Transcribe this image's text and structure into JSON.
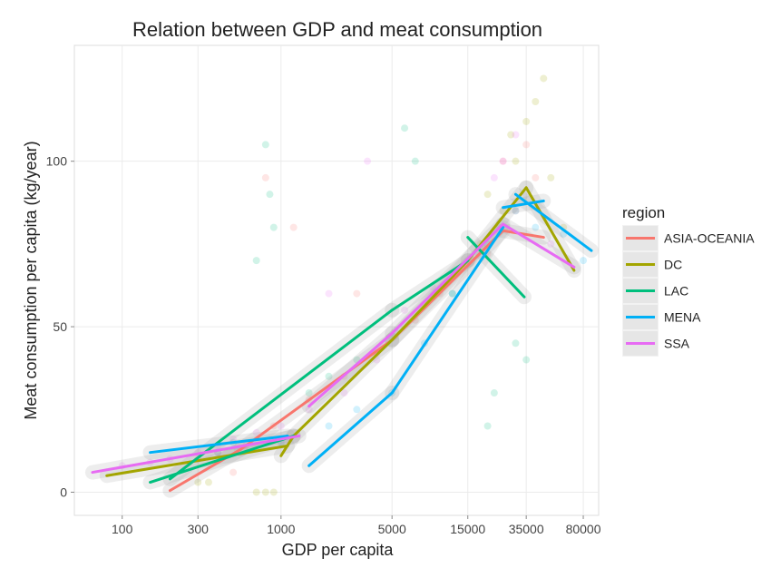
{
  "chart_data": {
    "type": "scatter",
    "title": "Relation between GDP and meat consumption",
    "xlabel": "GDP per capita",
    "ylabel": "Meat consumption per capita (kg/year)",
    "x_scale": "log",
    "xlim": [
      50,
      100000
    ],
    "ylim": [
      -7,
      135
    ],
    "x_ticks": [
      100,
      300,
      1000,
      5000,
      15000,
      35000,
      80000
    ],
    "x_tick_labels": [
      "100",
      "300",
      "1000",
      "5000",
      "15000",
      "35000",
      "80000"
    ],
    "y_ticks": [
      0,
      50,
      100
    ],
    "y_tick_labels": [
      "0",
      "50",
      "100"
    ],
    "grid": true,
    "legend": {
      "title": "region",
      "placement": "right"
    },
    "series": [
      {
        "name": "ASIA-OCEANIA",
        "color": "#F8766D",
        "trend_segments": [
          [
            [
              200,
              0.5
            ],
            [
              560,
              13
            ]
          ],
          [
            [
              560,
              13
            ],
            [
              5000,
              46
            ]
          ],
          [
            [
              5000,
              46
            ],
            [
              25000,
              79
            ]
          ],
          [
            [
              25000,
              79
            ],
            [
              45000,
              77
            ]
          ]
        ],
        "scatter": [
          [
            300,
            10
          ],
          [
            400,
            12
          ],
          [
            600,
            14
          ],
          [
            900,
            20
          ],
          [
            1500,
            28
          ],
          [
            2500,
            35
          ],
          [
            4000,
            42
          ],
          [
            7000,
            52
          ],
          [
            10000,
            60
          ],
          [
            20000,
            72
          ],
          [
            30000,
            85
          ],
          [
            40000,
            95
          ],
          [
            35000,
            105
          ],
          [
            25000,
            100
          ],
          [
            1200,
            80
          ],
          [
            800,
            95
          ],
          [
            3000,
            60
          ],
          [
            500,
            6
          ]
        ]
      },
      {
        "name": "DC",
        "color": "#A3A500",
        "trend_segments": [
          [
            [
              80,
              5
            ],
            [
              1100,
              14
            ]
          ],
          [
            [
              1000,
              11
            ],
            [
              1200,
              17
            ]
          ],
          [
            [
              1200,
              17
            ],
            [
              5000,
              46
            ]
          ],
          [
            [
              5000,
              46
            ],
            [
              15000,
              70
            ]
          ],
          [
            [
              15000,
              70
            ],
            [
              35000,
              92
            ]
          ],
          [
            [
              35000,
              92
            ],
            [
              70000,
              67
            ]
          ]
        ],
        "scatter": [
          [
            700,
            0
          ],
          [
            800,
            0
          ],
          [
            900,
            0
          ],
          [
            300,
            3
          ],
          [
            350,
            3
          ],
          [
            20000,
            90
          ],
          [
            28000,
            108
          ],
          [
            35000,
            112
          ],
          [
            40000,
            118
          ],
          [
            45000,
            125
          ],
          [
            30000,
            100
          ],
          [
            50000,
            95
          ],
          [
            60000,
            80
          ],
          [
            25000,
            85
          ],
          [
            18000,
            75
          ],
          [
            12000,
            65
          ]
        ]
      },
      {
        "name": "LAC",
        "color": "#00BF7D",
        "trend_segments": [
          [
            [
              150,
              3
            ],
            [
              1200,
              17
            ]
          ],
          [
            [
              200,
              4
            ],
            [
              5000,
              55
            ]
          ],
          [
            [
              5000,
              55
            ],
            [
              15000,
              70
            ]
          ],
          [
            [
              15000,
              77
            ],
            [
              34000,
              59
            ]
          ]
        ],
        "scatter": [
          [
            700,
            70
          ],
          [
            800,
            105
          ],
          [
            850,
            90
          ],
          [
            900,
            80
          ],
          [
            6000,
            110
          ],
          [
            7000,
            100
          ],
          [
            20000,
            20
          ],
          [
            22000,
            30
          ],
          [
            30000,
            45
          ],
          [
            35000,
            40
          ],
          [
            3000,
            40
          ],
          [
            2000,
            35
          ],
          [
            1500,
            30
          ],
          [
            12000,
            60
          ],
          [
            500,
            15
          ]
        ]
      },
      {
        "name": "MENA",
        "color": "#00B0F6",
        "trend_segments": [
          [
            [
              150,
              12
            ],
            [
              1100,
              17
            ]
          ],
          [
            [
              1500,
              8
            ],
            [
              5000,
              30
            ]
          ],
          [
            [
              5000,
              30
            ],
            [
              25000,
              80
            ]
          ],
          [
            [
              30000,
              90
            ],
            [
              90000,
              73
            ]
          ],
          [
            [
              25000,
              86
            ],
            [
              45000,
              88
            ]
          ]
        ],
        "scatter": [
          [
            2000,
            20
          ],
          [
            3000,
            25
          ],
          [
            5000,
            30
          ],
          [
            8000,
            45
          ],
          [
            12000,
            60
          ],
          [
            20000,
            75
          ],
          [
            30000,
            85
          ],
          [
            40000,
            80
          ],
          [
            60000,
            78
          ],
          [
            80000,
            70
          ],
          [
            400,
            12
          ],
          [
            1000,
            15
          ]
        ]
      },
      {
        "name": "SSA",
        "color": "#E76BF3",
        "trend_segments": [
          [
            [
              65,
              6
            ],
            [
              1300,
              17
            ]
          ],
          [
            [
              1500,
              26
            ],
            [
              5000,
              48
            ]
          ],
          [
            [
              5000,
              48
            ],
            [
              25000,
              81
            ]
          ],
          [
            [
              25000,
              81
            ],
            [
              70000,
              68
            ]
          ]
        ],
        "scatter": [
          [
            100,
            8
          ],
          [
            150,
            9
          ],
          [
            200,
            10
          ],
          [
            300,
            12
          ],
          [
            400,
            14
          ],
          [
            500,
            16
          ],
          [
            700,
            18
          ],
          [
            1000,
            20
          ],
          [
            1500,
            25
          ],
          [
            2500,
            30
          ],
          [
            4000,
            40
          ],
          [
            6000,
            55
          ],
          [
            9000,
            62
          ],
          [
            15000,
            70
          ],
          [
            22000,
            95
          ],
          [
            25000,
            100
          ],
          [
            30000,
            108
          ],
          [
            50000,
            75
          ],
          [
            3500,
            100
          ],
          [
            2000,
            60
          ]
        ]
      }
    ]
  }
}
